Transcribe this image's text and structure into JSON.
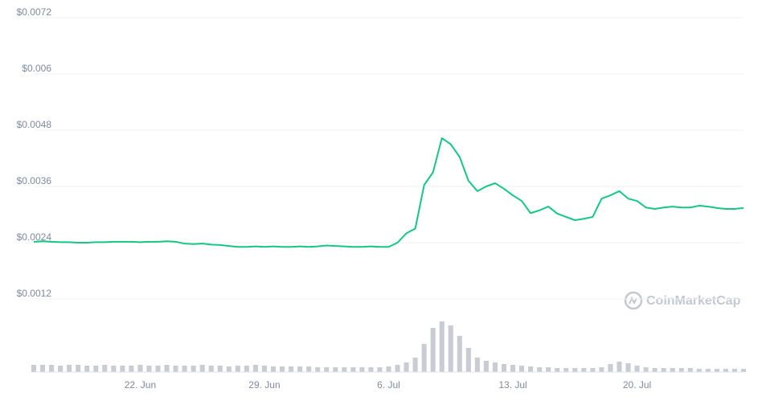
{
  "chart_data": {
    "type": "line",
    "watermark": "CoinMarketCap",
    "categories": [
      null,
      null,
      null,
      null,
      null,
      null,
      null,
      null,
      null,
      null,
      null,
      null,
      "22. Jun",
      null,
      null,
      null,
      null,
      null,
      null,
      null,
      null,
      null,
      null,
      null,
      null,
      null,
      "29. Jun",
      null,
      null,
      null,
      null,
      null,
      null,
      null,
      null,
      null,
      null,
      null,
      null,
      null,
      "6. Jul",
      null,
      null,
      null,
      null,
      null,
      null,
      null,
      null,
      null,
      null,
      null,
      null,
      null,
      "13. Jul",
      null,
      null,
      null,
      null,
      null,
      null,
      null,
      null,
      null,
      null,
      null,
      null,
      null,
      "20. Jul",
      null,
      null,
      null,
      null,
      null,
      null,
      null,
      null,
      null,
      null,
      null,
      null
    ],
    "series": [
      {
        "color": "#16c784",
        "values": [
          0.00242,
          0.00243,
          0.00242,
          0.00241,
          0.00241,
          0.0024,
          0.0024,
          0.00241,
          0.00241,
          0.00242,
          0.00242,
          0.00242,
          0.00241,
          0.00242,
          0.00242,
          0.00243,
          0.00242,
          0.00238,
          0.00237,
          0.00238,
          0.00236,
          0.00235,
          0.00233,
          0.00231,
          0.00231,
          0.00232,
          0.00231,
          0.00232,
          0.00231,
          0.00231,
          0.00232,
          0.00231,
          0.00232,
          0.00234,
          0.00233,
          0.00232,
          0.00231,
          0.00231,
          0.00232,
          0.00231,
          0.00231,
          0.0024,
          0.0026,
          0.0027,
          0.00363,
          0.0039,
          0.00463,
          0.0045,
          0.00423,
          0.00372,
          0.0035,
          0.0036,
          0.00367,
          0.00355,
          0.00341,
          0.00329,
          0.00303,
          0.00309,
          0.00317,
          0.00302,
          0.00295,
          0.00288,
          0.00291,
          0.00295,
          0.00334,
          0.00341,
          0.0035,
          0.00334,
          0.00329,
          0.00315,
          0.00312,
          0.00315,
          0.00317,
          0.00315,
          0.00315,
          0.00319,
          0.00317,
          0.00314,
          0.00312,
          0.00312,
          0.00314
        ]
      },
      {
        "type": "bar",
        "axis": "y2",
        "color": "#c9ccd3",
        "values": [
          9,
          9,
          9,
          8,
          9,
          9,
          8,
          8,
          9,
          8,
          8,
          8,
          9,
          8,
          8,
          9,
          8,
          8,
          8,
          9,
          8,
          8,
          7,
          8,
          8,
          9,
          8,
          7,
          7,
          7,
          7,
          7,
          6,
          6,
          6,
          6,
          6,
          6,
          6,
          6,
          7,
          9,
          12,
          18,
          35,
          55,
          63,
          58,
          45,
          30,
          18,
          14,
          12,
          10,
          9,
          8,
          7,
          6,
          6,
          5,
          5,
          5,
          5,
          5,
          6,
          10,
          13,
          11,
          8,
          6,
          5,
          5,
          5,
          5,
          5,
          4,
          4,
          4,
          4,
          4,
          4
        ]
      }
    ],
    "ylim": [
      0,
      0.0072
    ],
    "yticks": [
      {
        "value": 0.0012,
        "label": "$0.0012"
      },
      {
        "value": 0.0024,
        "label": "$0.0024"
      },
      {
        "value": 0.0036,
        "label": "$0.0036"
      },
      {
        "value": 0.0048,
        "label": "$0.0048"
      },
      {
        "value": 0.006,
        "label": "$0.006"
      },
      {
        "value": 0.0072,
        "label": "$0.0072"
      }
    ],
    "y2lim": [
      0,
      100
    ],
    "grid": true
  }
}
